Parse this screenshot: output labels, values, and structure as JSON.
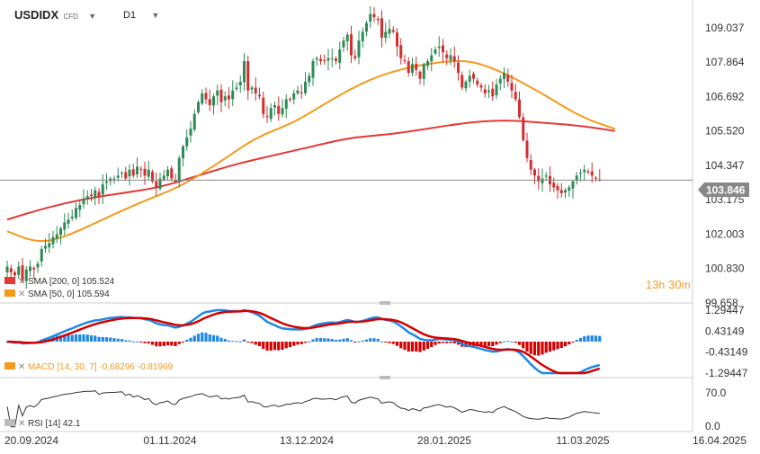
{
  "header": {
    "symbol": "USDIDX",
    "symbol_type": "CFD",
    "timeframe": "D1"
  },
  "colors": {
    "bull": "#2e8b57",
    "bear": "#d32f2f",
    "sma200": "#e53935",
    "sma50": "#f59a1c",
    "macd_line": "#1e88e5",
    "signal_line": "#d50000",
    "hist_pos": "#1e88e5",
    "hist_neg": "#d50000",
    "rsi": "#333333",
    "price_line": "#888888",
    "price_box": "#888888",
    "countdown": "#f59a1c"
  },
  "price_axis": [
    "109.037",
    "107.864",
    "106.692",
    "105.520",
    "104.347",
    "103.175",
    "102.003",
    "100.830",
    "99.658"
  ],
  "current_price": "103.846",
  "countdown": {
    "hours": "13",
    "h": "h",
    "minutes": "30",
    "m": "m"
  },
  "indicators": {
    "sma200": {
      "name": "SMA",
      "params": "[200, 0]",
      "value": "105.524"
    },
    "sma50": {
      "name": "SMA",
      "params": "[50, 0]",
      "value": "105.594"
    },
    "macd": {
      "name": "MACD",
      "params": "[14, 30, 7]",
      "value1": "-0.68296",
      "value2": "-0.81969"
    },
    "rsi": {
      "name": "RSI",
      "params": "[14]",
      "value": "42.1"
    }
  },
  "macd_axis": [
    "1.29447",
    "0.43149",
    "-0.43149",
    "-1.29447"
  ],
  "rsi_axis": [
    "70.0",
    "0.0"
  ],
  "x_axis": [
    "20.09.2024",
    "01.11.2024",
    "13.12.2024",
    "28.01.2025",
    "11.03.2025",
    "16.04.2025"
  ],
  "chart_data": [
    {
      "type": "candlestick",
      "title": "USDIDX",
      "interval": "D1",
      "x_tick_labels": [
        "20.09.2024",
        "01.11.2024",
        "13.12.2024",
        "28.01.2025",
        "11.03.2025",
        "16.04.2025"
      ],
      "ylim": [
        99.658,
        109.8
      ],
      "closes": [
        100.9,
        100.7,
        100.6,
        100.9,
        100.4,
        100.8,
        100.9,
        100.8,
        101.0,
        101.5,
        101.6,
        101.7,
        101.9,
        102.0,
        102.2,
        102.4,
        102.5,
        102.6,
        102.9,
        103.0,
        103.2,
        103.3,
        103.3,
        103.5,
        103.3,
        103.7,
        103.8,
        103.9,
        103.9,
        104.0,
        104.1,
        103.9,
        104.2,
        104.0,
        104.3,
        104.2,
        104.0,
        104.2,
        103.8,
        103.6,
        103.9,
        104.0,
        104.2,
        103.9,
        103.8,
        104.6,
        105.0,
        105.3,
        105.6,
        106.1,
        106.5,
        106.8,
        106.6,
        106.4,
        106.7,
        106.9,
        106.5,
        106.7,
        106.6,
        106.9,
        107.0,
        107.2,
        107.9,
        106.9,
        107.0,
        106.8,
        106.7,
        106.1,
        106.0,
        106.3,
        106.4,
        106.1,
        106.3,
        106.6,
        106.6,
        106.8,
        106.9,
        106.8,
        107.2,
        107.4,
        107.9,
        108.0,
        107.9,
        107.9,
        108.0,
        108.0,
        107.9,
        108.3,
        108.6,
        108.8,
        108.1,
        108.0,
        108.6,
        108.9,
        109.2,
        109.5,
        109.4,
        109.3,
        108.7,
        108.9,
        109.0,
        108.9,
        108.4,
        108.0,
        107.9,
        107.5,
        107.8,
        107.6,
        107.3,
        107.8,
        107.9,
        108.1,
        108.3,
        108.4,
        108.2,
        108.0,
        108.1,
        107.9,
        107.5,
        107.0,
        107.2,
        107.4,
        107.3,
        107.1,
        107.0,
        106.8,
        106.9,
        106.7,
        107.1,
        107.3,
        107.5,
        107.2,
        106.9,
        106.6,
        106.0,
        105.2,
        104.6,
        104.2,
        104.0,
        103.8,
        103.9,
        104.0,
        103.7,
        103.6,
        103.5,
        103.4,
        103.5,
        103.6,
        103.8,
        104.0,
        104.1,
        104.2,
        104.1,
        104.0,
        103.9,
        103.85
      ],
      "series": [
        {
          "name": "SMA [200, 0]",
          "last": 105.524,
          "points": [
            [
              0,
              102.5
            ],
            [
              10,
              102.9
            ],
            [
              20,
              103.2
            ],
            [
              30,
              103.4
            ],
            [
              40,
              103.6
            ],
            [
              50,
              104.0
            ],
            [
              60,
              104.4
            ],
            [
              70,
              104.7
            ],
            [
              80,
              105.0
            ],
            [
              90,
              105.3
            ],
            [
              100,
              105.4
            ],
            [
              110,
              105.6
            ],
            [
              120,
              105.8
            ],
            [
              130,
              105.9
            ],
            [
              140,
              105.8
            ],
            [
              150,
              105.7
            ],
            [
              159,
              105.52
            ]
          ]
        },
        {
          "name": "SMA [50, 0]",
          "last": 105.594,
          "points": [
            [
              0,
              102.1
            ],
            [
              8,
              101.7
            ],
            [
              15,
              101.9
            ],
            [
              25,
              102.5
            ],
            [
              35,
              103.1
            ],
            [
              45,
              103.6
            ],
            [
              55,
              104.4
            ],
            [
              65,
              105.3
            ],
            [
              75,
              105.8
            ],
            [
              85,
              106.6
            ],
            [
              95,
              107.3
            ],
            [
              105,
              107.7
            ],
            [
              115,
              107.9
            ],
            [
              122,
              107.9
            ],
            [
              130,
              107.5
            ],
            [
              140,
              106.8
            ],
            [
              150,
              106.0
            ],
            [
              159,
              105.59
            ]
          ]
        },
        {
          "name": "MACD [14, 30, 7]",
          "last": -0.68296
        },
        {
          "name": "Signal",
          "last": -0.81969
        },
        {
          "name": "RSI [14]",
          "last": 42.1
        }
      ]
    }
  ]
}
